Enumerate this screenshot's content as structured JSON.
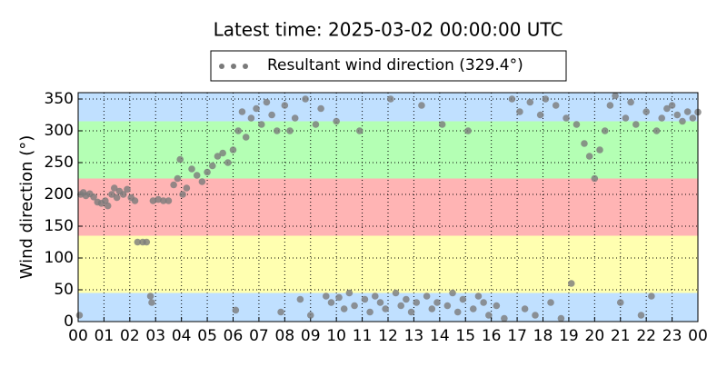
{
  "chart_data": {
    "type": "scatter",
    "title": "Latest time: 2025-03-02 00:00:00 UTC",
    "y_label": "Wind direction (°)",
    "x": [
      0.05,
      0.1,
      0.2,
      0.3,
      0.45,
      0.6,
      0.75,
      0.9,
      1.05,
      1.15,
      1.3,
      1.4,
      1.5,
      1.6,
      1.75,
      1.9,
      2.05,
      2.2,
      2.3,
      2.5,
      2.65,
      2.8,
      2.85,
      2.9,
      3.1,
      3.3,
      3.5,
      3.7,
      3.85,
      3.95,
      4.05,
      4.2,
      4.4,
      4.6,
      4.8,
      5.0,
      5.2,
      5.4,
      5.6,
      5.8,
      6.0,
      6.1,
      6.2,
      6.35,
      6.5,
      6.7,
      6.9,
      7.1,
      7.3,
      7.5,
      7.7,
      7.85,
      8.0,
      8.2,
      8.4,
      8.6,
      8.8,
      9.0,
      9.2,
      9.4,
      9.6,
      9.8,
      10.0,
      10.1,
      10.3,
      10.5,
      10.7,
      10.9,
      11.1,
      11.3,
      11.5,
      11.7,
      11.9,
      12.1,
      12.3,
      12.5,
      12.7,
      12.9,
      13.1,
      13.3,
      13.5,
      13.7,
      13.9,
      14.1,
      14.3,
      14.5,
      14.7,
      14.9,
      15.1,
      15.3,
      15.5,
      15.7,
      15.9,
      16.2,
      16.5,
      16.8,
      17.1,
      17.3,
      17.5,
      17.7,
      17.9,
      18.1,
      18.3,
      18.5,
      18.7,
      18.9,
      19.1,
      19.3,
      19.6,
      19.8,
      20.0,
      20.2,
      20.4,
      20.6,
      20.8,
      21.0,
      21.2,
      21.4,
      21.6,
      21.8,
      22.0,
      22.2,
      22.4,
      22.6,
      22.8,
      23.0,
      23.2,
      23.4,
      23.6,
      23.8,
      24.0
    ],
    "series": [
      {
        "name": "Resultant wind direction (329.4°)",
        "color": "#7a7a7a",
        "values": [
          10,
          200,
          203,
          198,
          201,
          196,
          188,
          186,
          190,
          182,
          200,
          210,
          195,
          205,
          200,
          208,
          195,
          190,
          125,
          125,
          125,
          40,
          30,
          190,
          192,
          190,
          190,
          215,
          225,
          255,
          200,
          210,
          240,
          230,
          220,
          235,
          245,
          260,
          265,
          250,
          270,
          18,
          300,
          330,
          290,
          320,
          335,
          310,
          345,
          325,
          300,
          15,
          340,
          300,
          320,
          35,
          350,
          10,
          310,
          335,
          40,
          30,
          315,
          38,
          20,
          45,
          25,
          300,
          35,
          15,
          40,
          30,
          20,
          350,
          45,
          25,
          35,
          15,
          30,
          340,
          40,
          20,
          30,
          310,
          25,
          45,
          15,
          35,
          300,
          20,
          40,
          30,
          10,
          25,
          5,
          350,
          330,
          20,
          345,
          10,
          325,
          350,
          30,
          340,
          5,
          320,
          60,
          310,
          280,
          260,
          225,
          270,
          300,
          340,
          355,
          30,
          320,
          345,
          310,
          10,
          330,
          40,
          300,
          320,
          335,
          340,
          325,
          315,
          330,
          320,
          329.4
        ]
      }
    ],
    "bands": [
      {
        "from": 0,
        "to": 45,
        "color": "#c0e0ff"
      },
      {
        "from": 45,
        "to": 135,
        "color": "#ffffb0"
      },
      {
        "from": 135,
        "to": 225,
        "color": "#ffb4b4"
      },
      {
        "from": 225,
        "to": 315,
        "color": "#b4ffb4"
      },
      {
        "from": 315,
        "to": 360,
        "color": "#c0e0ff"
      }
    ],
    "xlim": [
      0,
      24
    ],
    "xticks": [
      {
        "value": 0,
        "label": "00"
      },
      {
        "value": 1,
        "label": "01"
      },
      {
        "value": 2,
        "label": "02"
      },
      {
        "value": 3,
        "label": "03"
      },
      {
        "value": 4,
        "label": "04"
      },
      {
        "value": 5,
        "label": "05"
      },
      {
        "value": 6,
        "label": "06"
      },
      {
        "value": 7,
        "label": "07"
      },
      {
        "value": 8,
        "label": "08"
      },
      {
        "value": 9,
        "label": "09"
      },
      10,
      11,
      12,
      13,
      14,
      15,
      16,
      17,
      18,
      19,
      20,
      21,
      22,
      23,
      {
        "value": 24,
        "label": "00"
      }
    ],
    "ylim": [
      0,
      360
    ],
    "yticks": [
      0,
      50,
      100,
      150,
      200,
      250,
      300,
      350
    ],
    "grid": true
  }
}
